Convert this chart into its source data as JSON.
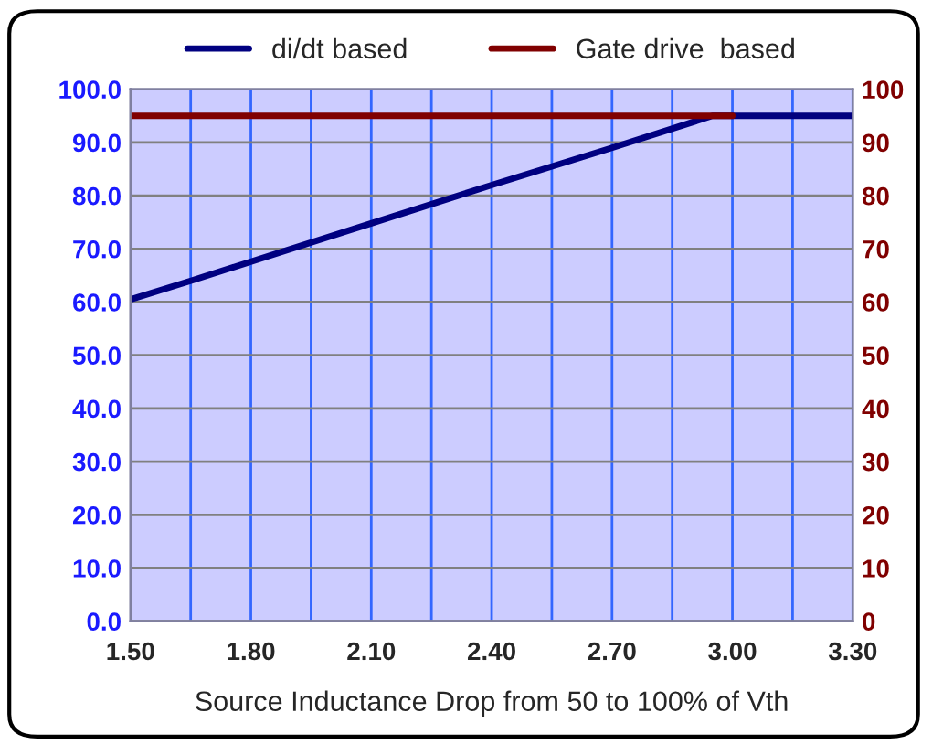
{
  "chart_data": {
    "type": "line",
    "xlabel": "Source Inductance Drop from 50 to 100% of Vth",
    "series": [
      {
        "name": "di/dt based",
        "color": "#000080",
        "x": [
          1.5,
          1.65,
          2.1,
          2.4,
          2.7,
          2.95,
          3.3
        ],
        "values": [
          60.5,
          64.0,
          74.8,
          82.0,
          89.0,
          95.0,
          95.0
        ]
      },
      {
        "name": "Gate drive  based",
        "color": "#800000",
        "axis": "y2",
        "x": [
          1.5,
          3.0
        ],
        "values": [
          95,
          95
        ]
      }
    ],
    "xlim": [
      1.5,
      3.3
    ],
    "xticks": [
      {
        "value": 1.5,
        "label": "1.50"
      },
      {
        "value": 1.65,
        "label": null
      },
      {
        "value": 1.8,
        "label": "1.80"
      },
      {
        "value": 1.95,
        "label": null
      },
      {
        "value": 2.1,
        "label": "2.10"
      },
      {
        "value": 2.25,
        "label": null
      },
      {
        "value": 2.4,
        "label": "2.40"
      },
      {
        "value": 2.55,
        "label": null
      },
      {
        "value": 2.7,
        "label": "2.70"
      },
      {
        "value": 2.85,
        "label": null
      },
      {
        "value": 3.0,
        "label": "3.00"
      },
      {
        "value": 3.15,
        "label": null
      },
      {
        "value": 3.3,
        "label": "3.30"
      }
    ],
    "ylim": [
      0,
      100
    ],
    "yticks": [
      {
        "value": 0,
        "label": "0.0"
      },
      {
        "value": 10,
        "label": "10.0"
      },
      {
        "value": 20,
        "label": "20.0"
      },
      {
        "value": 30,
        "label": "30.0"
      },
      {
        "value": 40,
        "label": "40.0"
      },
      {
        "value": 50,
        "label": "50.0"
      },
      {
        "value": 60,
        "label": "60.0"
      },
      {
        "value": 70,
        "label": "70.0"
      },
      {
        "value": 80,
        "label": "80.0"
      },
      {
        "value": 90,
        "label": "90.0"
      },
      {
        "value": 100,
        "label": "100.0"
      }
    ],
    "y2lim": [
      0,
      100
    ],
    "y2ticks": [
      0,
      10,
      20,
      30,
      40,
      50,
      60,
      70,
      80,
      90,
      100
    ],
    "grid": true,
    "legend": "top",
    "marker": "none",
    "line_style": "solid"
  }
}
